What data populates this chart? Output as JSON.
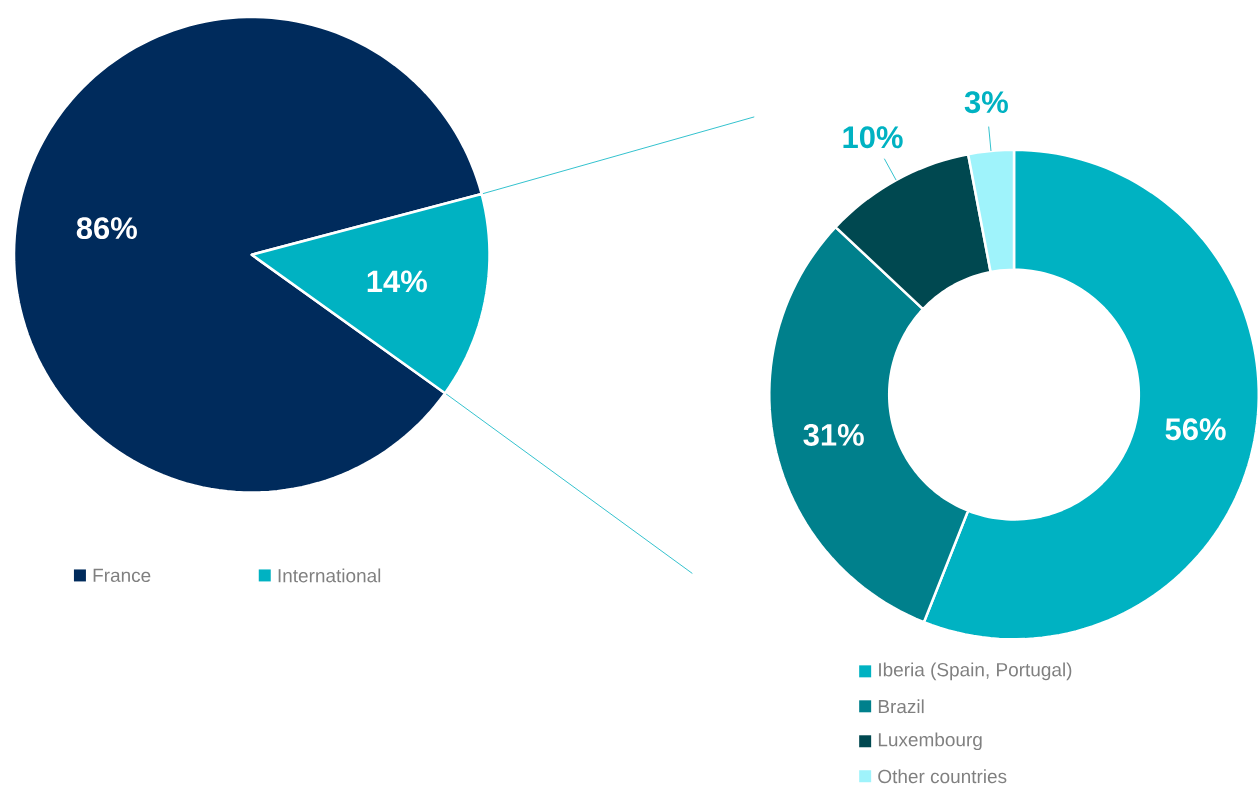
{
  "chart_data": [
    {
      "type": "pie",
      "categories": [
        "France",
        "International"
      ],
      "values": [
        86,
        14
      ],
      "colors": [
        "#002b5c",
        "#00b2c2"
      ],
      "value_labels": [
        "86%",
        "14%"
      ],
      "legend": "bottom"
    },
    {
      "type": "donut",
      "categories": [
        "Iberia (Spain, Portugal)",
        "Brazil",
        "Luxembourg",
        "Other countries"
      ],
      "values": [
        56,
        31,
        10,
        3
      ],
      "colors": [
        "#00b2c2",
        "#00808c",
        "#004850",
        "#9ff3fb"
      ],
      "value_labels": [
        "56%",
        "31%",
        "10%",
        "3%"
      ],
      "legend": "bottom"
    }
  ]
}
